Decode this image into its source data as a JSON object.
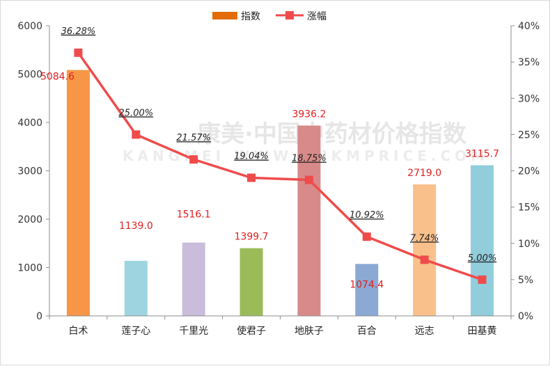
{
  "chart_data": {
    "type": "bar",
    "categories": [
      "白术",
      "莲子心",
      "千里光",
      "使君子",
      "地肤子",
      "百合",
      "远志",
      "田基黄"
    ],
    "series": [
      {
        "name": "指数",
        "axis": "left",
        "values": [
          5084.6,
          1139.0,
          1516.1,
          1399.7,
          3936.2,
          1074.4,
          2719.0,
          3115.7
        ],
        "labels": [
          "5084.6",
          "1139.0",
          "1516.1",
          "1399.7",
          "3936.2",
          "1074.4",
          "2719.0",
          "3115.7"
        ],
        "colors": [
          "#f79646",
          "#9dd4e0",
          "#c9bddb",
          "#9bbb59",
          "#d88a8a",
          "#8ba9d3",
          "#f9c08c",
          "#92cddc"
        ]
      },
      {
        "name": "涨幅",
        "type": "line",
        "axis": "right",
        "values": [
          36.28,
          25.0,
          21.57,
          19.04,
          18.75,
          10.92,
          7.74,
          5.0
        ],
        "labels": [
          "36.28%",
          "25.00%",
          "21.57%",
          "19.04%",
          "18.75%",
          "10.92%",
          "7.74%",
          "5.00%"
        ],
        "color": "#f04b4b"
      }
    ],
    "y_left": {
      "min": 0,
      "max": 6000,
      "step": 1000,
      "ticks": [
        "0",
        "1000",
        "2000",
        "3000",
        "4000",
        "5000",
        "6000"
      ]
    },
    "y_right": {
      "min": 0,
      "max": 40,
      "step": 5,
      "ticks": [
        "0%",
        "5%",
        "10%",
        "15%",
        "20%",
        "25%",
        "30%",
        "35%",
        "40%"
      ]
    },
    "legend_position": "top-center",
    "grid": false,
    "legend": [
      {
        "label": "指数",
        "color": "#e36c09",
        "marker": "bar"
      },
      {
        "label": "涨幅",
        "color": "#f04b4b",
        "marker": "line-square"
      }
    ]
  },
  "watermark": {
    "line1": "康美·中国中药材价格指数",
    "line2": "KANGMEI WWW.CNKMPRICE.COM"
  }
}
